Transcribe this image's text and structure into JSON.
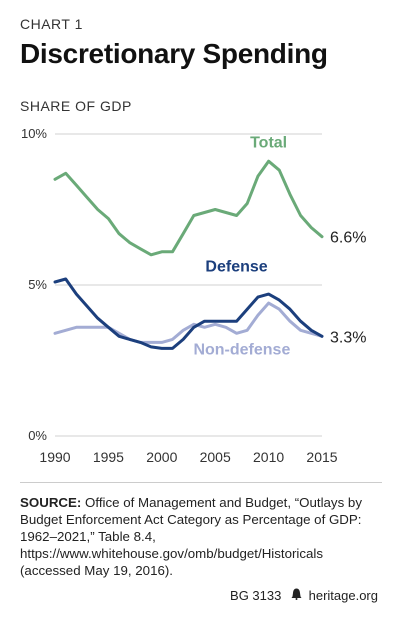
{
  "header": {
    "eyebrow": "CHART 1",
    "title": "Discretionary Spending",
    "subtitle": "SHARE OF GDP"
  },
  "source": {
    "label": "SOURCE:",
    "text": "Office of Management and Budget, “Outlays by Budget Enforcement Act Category as Percentage of GDP: 1962–2021,” Table 8.4, https://www.whitehouse.gov/omb/budget/Historicals (accessed May 19, 2016)."
  },
  "footer": {
    "code": "BG 3133",
    "site": "heritage.org",
    "icon": "liberty-bell-icon"
  },
  "chart_data": {
    "type": "line",
    "x": [
      1990,
      1991,
      1992,
      1993,
      1994,
      1995,
      1996,
      1997,
      1998,
      1999,
      2000,
      2001,
      2002,
      2003,
      2004,
      2005,
      2006,
      2007,
      2008,
      2009,
      2010,
      2011,
      2012,
      2013,
      2014,
      2015
    ],
    "xlim": [
      1990,
      2015
    ],
    "ylim": [
      0,
      10
    ],
    "xticks": [
      "1990",
      "1995",
      "2000",
      "2005",
      "2010",
      "2015"
    ],
    "yticks": [
      "0%",
      "5%",
      "10%"
    ],
    "grid": true,
    "series": [
      {
        "name": "Total",
        "color": "#6aaa78",
        "end_label": "6.6%",
        "values": [
          8.5,
          8.7,
          8.3,
          7.9,
          7.5,
          7.2,
          6.7,
          6.4,
          6.2,
          6.0,
          6.1,
          6.1,
          6.7,
          7.3,
          7.4,
          7.5,
          7.4,
          7.3,
          7.7,
          8.6,
          9.1,
          8.8,
          8.0,
          7.3,
          6.9,
          6.6
        ]
      },
      {
        "name": "Defense",
        "color": "#1c3f7d",
        "end_label": "3.3%",
        "values": [
          5.1,
          5.2,
          4.7,
          4.3,
          3.9,
          3.6,
          3.3,
          3.2,
          3.1,
          2.95,
          2.9,
          2.9,
          3.2,
          3.6,
          3.8,
          3.8,
          3.8,
          3.8,
          4.2,
          4.6,
          4.7,
          4.5,
          4.2,
          3.8,
          3.5,
          3.3
        ]
      },
      {
        "name": "Non-defense",
        "color": "#a3acd4",
        "end_label": "",
        "values": [
          3.4,
          3.5,
          3.6,
          3.6,
          3.6,
          3.6,
          3.4,
          3.2,
          3.1,
          3.1,
          3.1,
          3.2,
          3.5,
          3.7,
          3.6,
          3.7,
          3.6,
          3.4,
          3.5,
          4.0,
          4.4,
          4.2,
          3.8,
          3.5,
          3.4,
          3.3
        ]
      }
    ]
  }
}
